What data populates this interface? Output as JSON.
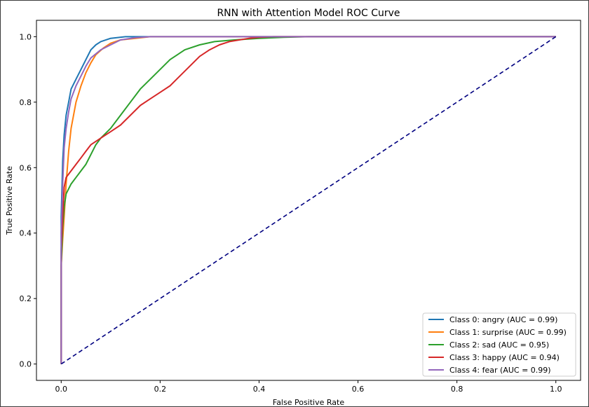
{
  "chart_data": {
    "type": "line",
    "title": "RNN with Attention Model ROC Curve",
    "xlabel": "False Positive Rate",
    "ylabel": "True Positive Rate",
    "xlim": [
      -0.05,
      1.05
    ],
    "ylim": [
      -0.05,
      1.05
    ],
    "xticks": [
      0.0,
      0.2,
      0.4,
      0.6,
      0.8,
      1.0
    ],
    "yticks": [
      0.0,
      0.2,
      0.4,
      0.6,
      0.8,
      1.0
    ],
    "tick_labels": [
      "0.0",
      "0.2",
      "0.4",
      "0.6",
      "0.8",
      "1.0"
    ],
    "grid": false,
    "legend_position": "lower-right",
    "series": [
      {
        "name": "Class 0: angry (AUC = 0.99)",
        "color": "#1f77b4",
        "points": [
          [
            0,
            0
          ],
          [
            0.0,
            0.45
          ],
          [
            0.003,
            0.62
          ],
          [
            0.006,
            0.7
          ],
          [
            0.01,
            0.76
          ],
          [
            0.015,
            0.8
          ],
          [
            0.02,
            0.84
          ],
          [
            0.03,
            0.87
          ],
          [
            0.04,
            0.9
          ],
          [
            0.05,
            0.93
          ],
          [
            0.06,
            0.96
          ],
          [
            0.07,
            0.975
          ],
          [
            0.08,
            0.985
          ],
          [
            0.1,
            0.995
          ],
          [
            0.13,
            1.0
          ],
          [
            1.0,
            1.0
          ]
        ]
      },
      {
        "name": "Class 1: surprise (AUC = 0.99)",
        "color": "#ff7f0e",
        "points": [
          [
            0,
            0
          ],
          [
            0.0,
            0.3
          ],
          [
            0.003,
            0.38
          ],
          [
            0.006,
            0.45
          ],
          [
            0.01,
            0.55
          ],
          [
            0.015,
            0.65
          ],
          [
            0.02,
            0.72
          ],
          [
            0.03,
            0.8
          ],
          [
            0.04,
            0.85
          ],
          [
            0.05,
            0.89
          ],
          [
            0.06,
            0.92
          ],
          [
            0.07,
            0.945
          ],
          [
            0.085,
            0.965
          ],
          [
            0.1,
            0.98
          ],
          [
            0.12,
            0.99
          ],
          [
            0.15,
            0.995
          ],
          [
            0.18,
            1.0
          ],
          [
            1.0,
            1.0
          ]
        ]
      },
      {
        "name": "Class 2: sad (AUC = 0.95)",
        "color": "#2ca02c",
        "points": [
          [
            0,
            0
          ],
          [
            0.0,
            0.3
          ],
          [
            0.003,
            0.42
          ],
          [
            0.006,
            0.48
          ],
          [
            0.01,
            0.52
          ],
          [
            0.02,
            0.55
          ],
          [
            0.03,
            0.57
          ],
          [
            0.04,
            0.59
          ],
          [
            0.05,
            0.61
          ],
          [
            0.06,
            0.64
          ],
          [
            0.07,
            0.67
          ],
          [
            0.08,
            0.69
          ],
          [
            0.1,
            0.72
          ],
          [
            0.12,
            0.76
          ],
          [
            0.14,
            0.8
          ],
          [
            0.16,
            0.84
          ],
          [
            0.18,
            0.87
          ],
          [
            0.2,
            0.9
          ],
          [
            0.22,
            0.93
          ],
          [
            0.25,
            0.96
          ],
          [
            0.28,
            0.975
          ],
          [
            0.31,
            0.985
          ],
          [
            0.35,
            0.99
          ],
          [
            0.4,
            0.995
          ],
          [
            0.45,
            0.998
          ],
          [
            0.5,
            1.0
          ],
          [
            1.0,
            1.0
          ]
        ]
      },
      {
        "name": "Class 3: happy (AUC = 0.94)",
        "color": "#d62728",
        "points": [
          [
            0,
            0
          ],
          [
            0.0,
            0.35
          ],
          [
            0.003,
            0.45
          ],
          [
            0.006,
            0.54
          ],
          [
            0.01,
            0.57
          ],
          [
            0.02,
            0.59
          ],
          [
            0.03,
            0.61
          ],
          [
            0.04,
            0.63
          ],
          [
            0.05,
            0.65
          ],
          [
            0.06,
            0.67
          ],
          [
            0.08,
            0.69
          ],
          [
            0.1,
            0.71
          ],
          [
            0.12,
            0.73
          ],
          [
            0.14,
            0.76
          ],
          [
            0.16,
            0.79
          ],
          [
            0.18,
            0.81
          ],
          [
            0.2,
            0.83
          ],
          [
            0.22,
            0.85
          ],
          [
            0.24,
            0.88
          ],
          [
            0.26,
            0.91
          ],
          [
            0.28,
            0.94
          ],
          [
            0.3,
            0.96
          ],
          [
            0.32,
            0.975
          ],
          [
            0.34,
            0.985
          ],
          [
            0.36,
            0.99
          ],
          [
            0.38,
            0.995
          ],
          [
            0.4,
            0.998
          ],
          [
            0.43,
            1.0
          ],
          [
            1.0,
            1.0
          ]
        ]
      },
      {
        "name": "Class 4: fear (AUC = 0.99)",
        "color": "#9467bd",
        "points": [
          [
            0,
            0
          ],
          [
            0.0,
            0.4
          ],
          [
            0.003,
            0.55
          ],
          [
            0.006,
            0.66
          ],
          [
            0.01,
            0.72
          ],
          [
            0.015,
            0.77
          ],
          [
            0.02,
            0.81
          ],
          [
            0.03,
            0.85
          ],
          [
            0.04,
            0.88
          ],
          [
            0.05,
            0.91
          ],
          [
            0.06,
            0.935
          ],
          [
            0.08,
            0.96
          ],
          [
            0.1,
            0.975
          ],
          [
            0.12,
            0.99
          ],
          [
            0.15,
            0.997
          ],
          [
            0.18,
            1.0
          ],
          [
            1.0,
            1.0
          ]
        ]
      },
      {
        "name": "",
        "color": "#000080",
        "dashed": true,
        "points": [
          [
            0,
            0
          ],
          [
            1,
            1
          ]
        ]
      }
    ]
  }
}
